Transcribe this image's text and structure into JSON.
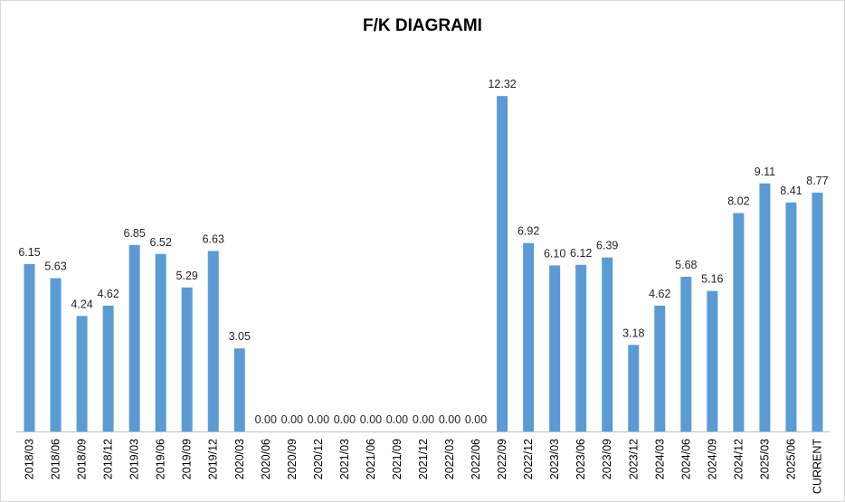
{
  "chart_data": {
    "type": "bar",
    "title": "F/K DIAGRAMI",
    "xlabel": "",
    "ylabel": "",
    "ylim": [
      0,
      14
    ],
    "grid": false,
    "legend": "none",
    "color": "#5B9BD5",
    "categories": [
      "2018/03",
      "2018/06",
      "2018/09",
      "2018/12",
      "2019/03",
      "2019/06",
      "2019/09",
      "2019/12",
      "2020/03",
      "2020/06",
      "2020/09",
      "2020/12",
      "2021/03",
      "2021/06",
      "2021/09",
      "2021/12",
      "2022/03",
      "2022/06",
      "2022/09",
      "2022/12",
      "2023/03",
      "2023/06",
      "2023/09",
      "2023/12",
      "2024/03",
      "2024/06",
      "2024/09",
      "2024/12",
      "2025/03",
      "2025/06",
      "CURRENT"
    ],
    "values": [
      6.15,
      5.63,
      4.24,
      4.62,
      6.85,
      6.52,
      5.29,
      6.63,
      3.05,
      0.0,
      0.0,
      0.0,
      0.0,
      0.0,
      0.0,
      0.0,
      0.0,
      0.0,
      12.32,
      6.92,
      6.1,
      6.12,
      6.39,
      3.18,
      4.62,
      5.68,
      5.16,
      8.02,
      9.11,
      8.41,
      8.77
    ],
    "labels": [
      "6.15",
      "5.63",
      "4.24",
      "4.62",
      "6.85",
      "6.52",
      "5.29",
      "6.63",
      "3.05",
      "0.00",
      "0.00",
      "0.00",
      "0.00",
      "0.00",
      "0.00",
      "0.00",
      "0.00",
      "0.00",
      "12.32",
      "6.92",
      "6.10",
      "6.12",
      "6.39",
      "3.18",
      "4.62",
      "5.68",
      "5.16",
      "8.02",
      "9.11",
      "8.41",
      "8.77"
    ]
  }
}
